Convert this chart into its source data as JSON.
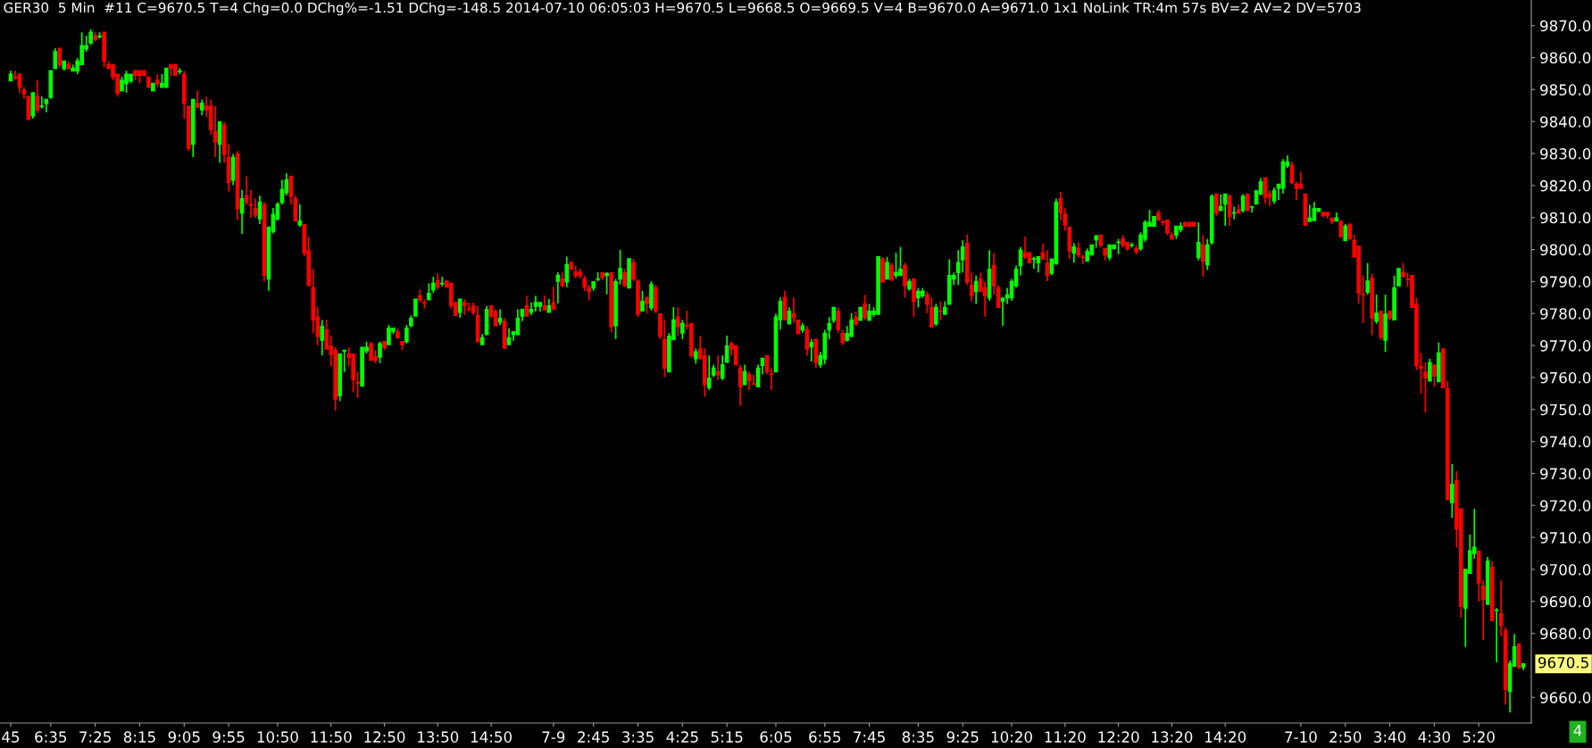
{
  "chart_data": {
    "type": "candlestick",
    "title": "GER30  5 Min  #11 C=9670.5 T=4 Chg=0.0 DChg%=-1.51 DChg=-148.5 2014-07-10 06:05:03 H=9670.5 L=9668.5 O=9669.5 V=4 B=9670.0 A=9671.0 1x1 NoLink TR:4m 57s BV=2 AV=2 DV=5703",
    "categories": [
      "45",
      null,
      null,
      null,
      null,
      null,
      null,
      null,
      null,
      "6:35",
      null,
      null,
      null,
      null,
      null,
      null,
      null,
      null,
      null,
      "7:25",
      null,
      null,
      null,
      null,
      null,
      null,
      null,
      null,
      null,
      "8:15",
      null,
      null,
      null,
      null,
      null,
      null,
      null,
      null,
      null,
      "9:05",
      null,
      null,
      null,
      null,
      null,
      null,
      null,
      null,
      null,
      "9:55",
      null,
      null,
      null,
      null,
      null,
      null,
      null,
      null,
      null,
      null,
      "10:50",
      null,
      null,
      null,
      null,
      null,
      null,
      null,
      null,
      null,
      null,
      null,
      "11:50",
      null,
      null,
      null,
      null,
      null,
      null,
      null,
      null,
      null,
      null,
      null,
      "12:50",
      null,
      null,
      null,
      null,
      null,
      null,
      null,
      null,
      null,
      null,
      null,
      "13:50",
      null,
      null,
      null,
      null,
      null,
      null,
      null,
      null,
      null,
      null,
      null,
      "14:50",
      null,
      null,
      null,
      null,
      null,
      null,
      null,
      null,
      null,
      null,
      null,
      null,
      null,
      "7-9",
      null,
      null,
      null,
      null,
      null,
      null,
      null,
      null,
      "2:45",
      null,
      null,
      null,
      null,
      null,
      null,
      null,
      null,
      null,
      "3:35",
      null,
      null,
      null,
      null,
      null,
      null,
      null,
      null,
      null,
      "4:25",
      null,
      null,
      null,
      null,
      null,
      null,
      null,
      null,
      null,
      "5:15",
      null,
      null,
      null,
      null,
      null,
      null,
      null,
      null,
      null,
      null,
      "6:05",
      null,
      null,
      null,
      null,
      null,
      null,
      null,
      null,
      null,
      null,
      "6:55",
      null,
      null,
      null,
      null,
      null,
      null,
      null,
      null,
      null,
      "7:45",
      null,
      null,
      null,
      null,
      null,
      null,
      null,
      null,
      null,
      null,
      "8:35",
      null,
      null,
      null,
      null,
      null,
      null,
      null,
      null,
      null,
      "9:25",
      null,
      null,
      null,
      null,
      null,
      null,
      null,
      null,
      null,
      null,
      "10:20",
      null,
      null,
      null,
      null,
      null,
      null,
      null,
      null,
      null,
      null,
      null,
      "11:20",
      null,
      null,
      null,
      null,
      null,
      null,
      null,
      null,
      null,
      null,
      null,
      "12:20",
      null,
      null,
      null,
      null,
      null,
      null,
      null,
      null,
      null,
      null,
      null,
      "13:20",
      null,
      null,
      null,
      null,
      null,
      null,
      null,
      null,
      null,
      null,
      null,
      "14:20",
      null,
      null,
      null,
      null,
      null,
      null,
      null,
      null,
      null,
      null,
      null,
      null,
      null,
      null,
      null,
      null,
      "7-10",
      null,
      null,
      null,
      null,
      null,
      null,
      null,
      null,
      null,
      "2:50",
      null,
      null,
      null,
      null,
      null,
      null,
      null,
      null,
      null,
      "3:40",
      null,
      null,
      null,
      null,
      null,
      null,
      null,
      null,
      null,
      "4:30",
      null,
      null,
      null,
      null,
      null,
      null,
      null,
      null,
      null,
      "5:20",
      null,
      null,
      null,
      null,
      null,
      null,
      null,
      null,
      null,
      null
    ],
    "ohlc": [
      [
        9852.7,
        9855.9,
        9852.7,
        9854.8
      ],
      [
        9853.9,
        9855.9,
        9853.0,
        9853.7
      ],
      [
        9854.8,
        9854.8,
        9849.0,
        9850.7
      ],
      [
        9849.8,
        9850.8,
        9847.1,
        9848.7
      ],
      [
        9847.8,
        9847.8,
        9840.7,
        9840.7
      ],
      [
        9841.8,
        9849.0,
        9840.9,
        9849.0
      ],
      [
        9847.8,
        9852.9,
        9842.7,
        9843.7
      ],
      [
        9844.7,
        9847.8,
        9844.0,
        9844.8
      ],
      [
        9845.7,
        9846.9,
        9842.9,
        9846.9
      ],
      [
        9847.6,
        9855.9,
        9847.1,
        9855.9
      ],
      [
        9856.6,
        9862.9,
        9856.6,
        9861.8
      ],
      [
        9862.9,
        9862.9,
        9856.9,
        9857.8
      ],
      [
        9856.6,
        9858.9,
        9855.9,
        9858.9
      ],
      [
        9857.8,
        9858.9,
        9856.6,
        9856.6
      ],
      [
        9855.8,
        9857.8,
        9855.8,
        9856.7
      ],
      [
        9855.8,
        9859.9,
        9854.8,
        9858.9
      ],
      [
        9857.8,
        9867.9,
        9857.8,
        9863.7
      ],
      [
        9862.7,
        9866.8,
        9861.8,
        9863.7
      ],
      [
        9864.6,
        9868.8,
        9863.9,
        9867.9
      ],
      [
        9866.8,
        9867.9,
        9865.0,
        9865.7
      ],
      [
        9866.5,
        9867.9,
        9866.0,
        9866.7
      ],
      [
        9867.9,
        9867.9,
        9856.9,
        9858.9
      ],
      [
        9857.8,
        9858.9,
        9856.6,
        9856.6
      ],
      [
        9857.8,
        9857.8,
        9852.9,
        9853.9
      ],
      [
        9854.8,
        9854.8,
        9847.8,
        9848.8
      ],
      [
        9849.6,
        9854.1,
        9849.6,
        9852.9
      ],
      [
        9851.8,
        9855.9,
        9849.0,
        9854.8
      ],
      [
        9852.7,
        9854.8,
        9852.0,
        9854.8
      ],
      [
        9855.9,
        9855.9,
        9852.9,
        9854.5
      ],
      [
        9855.9,
        9855.9,
        9852.0,
        9854.5
      ],
      [
        9855.9,
        9855.9,
        9854.1,
        9854.5
      ],
      [
        9853.9,
        9853.9,
        9850.7,
        9850.7
      ],
      [
        9849.6,
        9851.9,
        9849.6,
        9851.9
      ],
      [
        9852.9,
        9854.8,
        9850.7,
        9851.8
      ],
      [
        9850.7,
        9854.8,
        9850.7,
        9851.9
      ],
      [
        9850.7,
        9856.7,
        9850.7,
        9856.7
      ],
      [
        9857.8,
        9857.8,
        9854.1,
        9856.7
      ],
      [
        9857.8,
        9857.8,
        9854.5,
        9854.5
      ],
      [
        9855.6,
        9856.7,
        9854.8,
        9855.8
      ],
      [
        9854.8,
        9855.9,
        9840.9,
        9845.7
      ],
      [
        9844.8,
        9844.8,
        9830.8,
        9831.7
      ],
      [
        9832.9,
        9846.9,
        9828.9,
        9846.9
      ],
      [
        9845.7,
        9849.7,
        9844.0,
        9844.6
      ],
      [
        9843.7,
        9846.9,
        9842.0,
        9845.7
      ],
      [
        9844.8,
        9847.8,
        9841.5,
        9843.7
      ],
      [
        9844.8,
        9846.9,
        9835.9,
        9837.5
      ],
      [
        9836.9,
        9844.8,
        9828.9,
        9833.6
      ],
      [
        9832.9,
        9839.9,
        9827.1,
        9839.9
      ],
      [
        9838.9,
        9839.9,
        9827.1,
        9829.7
      ],
      [
        9828.8,
        9832.9,
        9818.1,
        9820.9
      ],
      [
        9821.7,
        9829.9,
        9820.1,
        9828.8
      ],
      [
        9829.9,
        9830.8,
        9809.2,
        9812.7
      ],
      [
        9811.4,
        9818.7,
        9804.9,
        9815.9
      ],
      [
        9816.8,
        9822.9,
        9814.0,
        9814.8
      ],
      [
        9814.0,
        9818.7,
        9809.9,
        9813.8
      ],
      [
        9812.8,
        9815.9,
        9809.9,
        9810.8
      ],
      [
        9809.6,
        9816.8,
        9808.0,
        9814.8
      ],
      [
        9814.0,
        9814.8,
        9790.0,
        9791.9
      ],
      [
        9790.8,
        9807.0,
        9787.1,
        9807.0
      ],
      [
        9805.7,
        9813.0,
        9805.0,
        9811.0
      ],
      [
        9809.6,
        9814.8,
        9809.1,
        9814.1
      ],
      [
        9814.7,
        9821.8,
        9814.1,
        9818.7
      ],
      [
        9817.8,
        9823.9,
        9816.9,
        9821.8
      ],
      [
        9822.9,
        9822.9,
        9814.1,
        9816.7
      ],
      [
        9815.9,
        9816.9,
        9808.9,
        9808.9
      ],
      [
        9807.7,
        9814.1,
        9807.1,
        9808.9
      ],
      [
        9807.8,
        9807.8,
        9798.0,
        9798.9
      ],
      [
        9799.6,
        9804.0,
        9788.8,
        9788.8
      ],
      [
        9788.0,
        9793.9,
        9773.9,
        9778.0
      ],
      [
        9778.8,
        9782.0,
        9770.0,
        9772.9
      ],
      [
        9771.7,
        9778.0,
        9766.9,
        9776.0
      ],
      [
        9774.9,
        9778.0,
        9768.9,
        9768.9
      ],
      [
        9769.8,
        9773.1,
        9763.5,
        9767.2
      ],
      [
        9768.5,
        9769.4,
        9749.6,
        9753.3
      ],
      [
        9754.3,
        9767.3,
        9752.6,
        9767.3
      ],
      [
        9768.3,
        9768.5,
        9761.7,
        9768.5
      ],
      [
        9767.3,
        9769.4,
        9763.5,
        9766.3
      ],
      [
        9767.3,
        9767.3,
        9755.4,
        9759.4
      ],
      [
        9758.5,
        9761.7,
        9753.6,
        9758.3
      ],
      [
        9757.3,
        9769.4,
        9757.3,
        9769.4
      ],
      [
        9768.3,
        9771.2,
        9767.5,
        9769.4
      ],
      [
        9770.5,
        9771.2,
        9765.4,
        9765.4
      ],
      [
        9766.4,
        9768.5,
        9764.5,
        9765.4
      ],
      [
        9766.4,
        9771.2,
        9764.5,
        9770.5
      ],
      [
        9771.2,
        9771.2,
        9768.6,
        9769.4
      ],
      [
        9770.3,
        9776.4,
        9770.3,
        9775.4
      ],
      [
        9774.5,
        9775.4,
        9773.6,
        9775.4
      ],
      [
        9774.3,
        9775.4,
        9772.4,
        9772.4
      ],
      [
        9771.2,
        9771.2,
        9768.6,
        9770.3
      ],
      [
        9771.2,
        9776.4,
        9770.6,
        9775.4
      ],
      [
        9776.2,
        9779.4,
        9775.7,
        9778.5
      ],
      [
        9779.2,
        9784.5,
        9779.2,
        9784.5
      ],
      [
        9785.5,
        9787.5,
        9783.4,
        9784.3
      ],
      [
        9783.4,
        9784.5,
        9781.5,
        9783.3
      ],
      [
        9784.3,
        9789.4,
        9784.3,
        9786.3
      ],
      [
        9787.4,
        9791.5,
        9786.4,
        9789.4
      ],
      [
        9790.3,
        9792.5,
        9787.5,
        9788.3
      ],
      [
        9789.3,
        9791.5,
        9788.5,
        9789.4
      ],
      [
        9790.1,
        9790.1,
        9788.3,
        9788.3
      ],
      [
        9789.4,
        9789.4,
        9781.5,
        9782.4
      ],
      [
        9783.4,
        9783.4,
        9779.4,
        9779.4
      ],
      [
        9780.4,
        9784.5,
        9778.7,
        9784.5
      ],
      [
        9783.4,
        9784.5,
        9779.6,
        9782.4
      ],
      [
        9781.4,
        9783.4,
        9780.6,
        9781.3
      ],
      [
        9782.4,
        9783.4,
        9779.6,
        9780.4
      ],
      [
        9779.4,
        9782.4,
        9771.2,
        9771.2
      ],
      [
        9770.3,
        9773.6,
        9770.3,
        9772.4
      ],
      [
        9773.4,
        9782.4,
        9773.4,
        9781.3
      ],
      [
        9782.4,
        9782.4,
        9778.5,
        9779.2
      ],
      [
        9780.6,
        9781.3,
        9776.2,
        9776.2
      ],
      [
        9777.3,
        9781.3,
        9776.4,
        9778.5
      ],
      [
        9777.5,
        9778.5,
        9769.2,
        9769.2
      ],
      [
        9770.3,
        9775.4,
        9770.3,
        9772.4
      ],
      [
        9773.4,
        9774.3,
        9771.5,
        9774.3
      ],
      [
        9773.4,
        9781.3,
        9773.4,
        9778.5
      ],
      [
        9779.2,
        9781.3,
        9777.6,
        9781.3
      ],
      [
        9782.4,
        9785.5,
        9779.2,
        9779.2
      ],
      [
        9780.4,
        9783.4,
        9779.5,
        9781.3
      ],
      [
        9782.3,
        9785.6,
        9780.6,
        9783.4
      ],
      [
        9782.3,
        9783.4,
        9780.6,
        9783.4
      ],
      [
        9782.4,
        9785.6,
        9781.2,
        9781.2
      ],
      [
        9780.4,
        9784.5,
        9780.4,
        9782.4
      ],
      [
        9783.4,
        9788.3,
        9781.3,
        9781.3
      ],
      [
        9790.1,
        9792.9,
        9783.1,
        9791.9
      ],
      [
        9790.8,
        9792.9,
        9788.2,
        9788.7
      ],
      [
        9789.9,
        9797.8,
        9788.2,
        9795.3
      ],
      [
        9795.9,
        9796.4,
        9793.8,
        9793.8
      ],
      [
        9792.9,
        9795.0,
        9791.0,
        9791.9
      ],
      [
        9792.9,
        9794.0,
        9791.0,
        9791.9
      ],
      [
        9790.8,
        9791.9,
        9787.1,
        9788.2
      ],
      [
        9788.0,
        9789.0,
        9784.1,
        9786.9
      ],
      [
        9788.0,
        9789.9,
        9787.1,
        9789.9
      ],
      [
        9790.7,
        9792.9,
        9790.1,
        9790.8
      ],
      [
        9792.7,
        9792.7,
        9790.4,
        9791.3
      ],
      [
        9791.9,
        9792.9,
        9786.0,
        9792.5
      ],
      [
        9792.7,
        9792.7,
        9774.1,
        9775.9
      ],
      [
        9776.2,
        9790.8,
        9772.0,
        9789.9
      ],
      [
        9790.8,
        9799.9,
        9789.1,
        9794.0
      ],
      [
        9792.7,
        9794.0,
        9788.2,
        9788.8
      ],
      [
        9788.0,
        9797.1,
        9788.0,
        9797.1
      ],
      [
        9795.9,
        9797.1,
        9790.1,
        9790.8
      ],
      [
        9790.1,
        9790.8,
        9778.9,
        9779.8
      ],
      [
        9780.8,
        9787.1,
        9780.8,
        9783.8
      ],
      [
        9785.0,
        9785.0,
        9780.1,
        9783.1
      ],
      [
        9781.8,
        9790.1,
        9780.9,
        9789.0
      ],
      [
        9788.0,
        9789.0,
        9780.1,
        9780.8
      ],
      [
        9779.9,
        9779.9,
        9772.0,
        9772.9
      ],
      [
        9771.9,
        9778.0,
        9760.1,
        9762.9
      ],
      [
        9761.8,
        9773.9,
        9761.8,
        9772.9
      ],
      [
        9771.9,
        9782.0,
        9771.9,
        9778.0
      ],
      [
        9778.9,
        9782.0,
        9773.1,
        9775.9
      ],
      [
        9773.9,
        9778.0,
        9772.0,
        9776.9
      ],
      [
        9776.2,
        9780.9,
        9775.0,
        9776.1
      ],
      [
        9776.9,
        9776.9,
        9766.2,
        9766.8
      ],
      [
        9765.9,
        9769.1,
        9764.3,
        9768.0
      ],
      [
        9768.9,
        9773.1,
        9765.9,
        9765.9
      ],
      [
        9766.8,
        9769.1,
        9754.0,
        9757.8
      ],
      [
        9756.9,
        9766.9,
        9756.1,
        9759.8
      ],
      [
        9760.8,
        9764.0,
        9760.1,
        9762.9
      ],
      [
        9761.8,
        9766.9,
        9759.2,
        9760.9
      ],
      [
        9759.8,
        9766.9,
        9759.2,
        9764.0
      ],
      [
        9764.8,
        9773.1,
        9764.8,
        9769.9
      ],
      [
        9770.5,
        9771.3,
        9766.9,
        9768.9
      ],
      [
        9769.9,
        9769.9,
        9764.0,
        9764.0
      ],
      [
        9762.9,
        9764.0,
        9751.1,
        9757.1
      ],
      [
        9757.8,
        9764.0,
        9757.8,
        9761.8
      ],
      [
        9760.9,
        9761.8,
        9756.1,
        9759.0
      ],
      [
        9758.0,
        9760.9,
        9757.9,
        9757.9
      ],
      [
        9757.1,
        9764.0,
        9757.1,
        9762.9
      ],
      [
        9763.8,
        9766.0,
        9761.0,
        9766.0
      ],
      [
        9766.8,
        9766.8,
        9761.0,
        9761.8
      ],
      [
        9761.1,
        9762.9,
        9756.1,
        9761.0
      ],
      [
        9761.8,
        9779.9,
        9761.8,
        9778.9
      ],
      [
        9778.0,
        9785.0,
        9775.0,
        9783.8
      ],
      [
        9785.0,
        9787.1,
        9778.0,
        9778.0
      ],
      [
        9776.8,
        9781.9,
        9776.8,
        9780.7
      ],
      [
        9779.9,
        9785.0,
        9777.0,
        9778.7
      ],
      [
        9777.9,
        9777.9,
        9773.7,
        9773.7
      ],
      [
        9774.8,
        9777.0,
        9774.0,
        9776.1
      ],
      [
        9774.9,
        9776.1,
        9766.8,
        9768.9
      ],
      [
        9769.6,
        9772.0,
        9765.0,
        9770.9
      ],
      [
        9771.9,
        9771.9,
        9763.0,
        9764.7
      ],
      [
        9764.0,
        9768.0,
        9763.0,
        9766.8
      ],
      [
        9765.8,
        9774.9,
        9764.2,
        9773.8
      ],
      [
        9774.9,
        9778.9,
        9772.0,
        9776.8
      ],
      [
        9777.9,
        9781.9,
        9777.0,
        9781.9
      ],
      [
        9780.7,
        9781.9,
        9774.0,
        9775.0
      ],
      [
        9773.7,
        9774.9,
        9770.1,
        9771.0
      ],
      [
        9771.7,
        9776.1,
        9771.2,
        9773.7
      ],
      [
        9772.9,
        9780.1,
        9772.9,
        9777.9
      ],
      [
        9778.8,
        9780.7,
        9776.1,
        9776.8
      ],
      [
        9777.9,
        9781.9,
        9777.9,
        9781.9
      ],
      [
        9783.0,
        9785.8,
        9777.9,
        9778.7
      ],
      [
        9777.9,
        9783.0,
        9777.9,
        9780.7
      ],
      [
        9779.8,
        9781.9,
        9778.9,
        9780.7
      ],
      [
        9779.8,
        9797.7,
        9779.8,
        9797.7
      ],
      [
        9797.0,
        9797.7,
        9789.8,
        9789.8
      ],
      [
        9790.8,
        9797.7,
        9790.8,
        9795.9
      ],
      [
        9795.0,
        9795.9,
        9790.1,
        9790.6
      ],
      [
        9791.9,
        9799.0,
        9791.0,
        9792.8
      ],
      [
        9791.9,
        9800.8,
        9791.9,
        9793.8
      ],
      [
        9795.0,
        9795.9,
        9785.0,
        9788.7
      ],
      [
        9787.8,
        9790.8,
        9787.1,
        9790.0
      ],
      [
        9790.8,
        9790.8,
        9779.0,
        9783.8
      ],
      [
        9784.9,
        9788.0,
        9781.9,
        9786.9
      ],
      [
        9785.6,
        9788.0,
        9784.9,
        9786.9
      ],
      [
        9785.8,
        9786.9,
        9780.1,
        9782.9
      ],
      [
        9781.9,
        9785.0,
        9775.9,
        9775.9
      ],
      [
        9776.8,
        9783.0,
        9776.1,
        9781.9
      ],
      [
        9780.8,
        9783.8,
        9777.9,
        9780.7
      ],
      [
        9779.8,
        9783.8,
        9779.8,
        9781.9
      ],
      [
        9782.9,
        9797.0,
        9782.9,
        9791.9
      ],
      [
        9790.8,
        9792.8,
        9788.9,
        9791.9
      ],
      [
        9792.8,
        9799.8,
        9788.9,
        9795.9
      ],
      [
        9796.8,
        9802.9,
        9792.8,
        9800.8
      ],
      [
        9801.9,
        9804.7,
        9788.9,
        9789.8
      ],
      [
        9788.9,
        9792.8,
        9783.8,
        9785.6
      ],
      [
        9786.9,
        9791.9,
        9783.0,
        9790.0
      ],
      [
        9790.8,
        9792.8,
        9786.9,
        9786.9
      ],
      [
        9788.0,
        9790.0,
        9779.0,
        9785.6
      ],
      [
        9784.9,
        9799.8,
        9784.0,
        9793.8
      ],
      [
        9795.0,
        9799.0,
        9785.8,
        9788.7
      ],
      [
        9788.0,
        9788.9,
        9781.9,
        9781.9
      ],
      [
        9783.8,
        9784.8,
        9776.1,
        9784.8
      ],
      [
        9784.9,
        9788.0,
        9783.0,
        9785.8
      ],
      [
        9784.9,
        9790.8,
        9784.0,
        9790.0
      ],
      [
        9788.7,
        9795.0,
        9788.0,
        9793.8
      ],
      [
        9795.0,
        9800.8,
        9791.9,
        9799.8
      ],
      [
        9799.0,
        9804.0,
        9797.0,
        9797.7
      ],
      [
        9799.0,
        9799.0,
        9795.9,
        9795.9
      ],
      [
        9797.0,
        9797.7,
        9794.0,
        9797.1
      ],
      [
        9795.9,
        9797.7,
        9792.8,
        9797.7
      ],
      [
        9799.0,
        9801.9,
        9797.0,
        9797.0
      ],
      [
        9795.7,
        9799.8,
        9790.1,
        9791.9
      ],
      [
        9792.6,
        9797.0,
        9792.0,
        9797.0
      ],
      [
        9795.6,
        9815.9,
        9795.2,
        9814.8
      ],
      [
        9815.9,
        9818.0,
        9809.1,
        9811.6
      ],
      [
        9811.0,
        9812.9,
        9805.9,
        9807.7
      ],
      [
        9807.0,
        9807.0,
        9797.0,
        9799.6
      ],
      [
        9798.9,
        9802.0,
        9795.9,
        9800.8
      ],
      [
        9800.3,
        9802.2,
        9797.5,
        9798.3
      ],
      [
        9797.6,
        9798.4,
        9795.4,
        9797.5
      ],
      [
        9796.4,
        9800.3,
        9796.4,
        9799.4
      ],
      [
        9798.3,
        9801.4,
        9798.3,
        9801.4
      ],
      [
        9803.1,
        9804.3,
        9800.6,
        9804.3
      ],
      [
        9804.5,
        9804.5,
        9800.6,
        9801.4
      ],
      [
        9800.3,
        9800.3,
        9796.6,
        9798.3
      ],
      [
        9797.5,
        9801.4,
        9796.6,
        9801.4
      ],
      [
        9800.3,
        9801.4,
        9800.3,
        9801.4
      ],
      [
        9802.2,
        9803.3,
        9798.5,
        9802.3
      ],
      [
        9803.3,
        9804.5,
        9800.6,
        9801.4
      ],
      [
        9802.2,
        9802.2,
        9799.6,
        9800.3
      ],
      [
        9801.3,
        9802.2,
        9800.6,
        9801.4
      ],
      [
        9800.3,
        9801.4,
        9798.5,
        9799.4
      ],
      [
        9800.3,
        9805.4,
        9799.6,
        9804.5
      ],
      [
        9803.3,
        9809.2,
        9802.4,
        9808.5
      ],
      [
        9807.3,
        9812.4,
        9807.3,
        9808.5
      ],
      [
        9807.3,
        9810.3,
        9807.3,
        9810.3
      ],
      [
        9811.4,
        9812.4,
        9809.2,
        9809.2
      ],
      [
        9808.6,
        9809.2,
        9807.4,
        9808.5
      ],
      [
        9809.2,
        9809.2,
        9804.5,
        9805.2
      ],
      [
        9804.5,
        9805.4,
        9803.3,
        9803.3
      ],
      [
        9804.5,
        9807.3,
        9803.3,
        9807.3
      ],
      [
        9806.3,
        9808.5,
        9805.4,
        9807.3
      ],
      [
        9808.5,
        9808.5,
        9807.3,
        9807.3
      ],
      [
        9808.5,
        9808.5,
        9807.3,
        9807.3
      ],
      [
        9808.5,
        9808.5,
        9807.3,
        9807.3
      ],
      [
        9797.5,
        9808.5,
        9796.6,
        9802.2
      ],
      [
        9801.4,
        9804.5,
        9791.5,
        9796.4
      ],
      [
        9795.2,
        9803.3,
        9793.6,
        9801.4
      ],
      [
        9802.2,
        9817.3,
        9801.5,
        9816.6
      ],
      [
        9817.3,
        9817.3,
        9810.5,
        9811.4
      ],
      [
        9812.2,
        9817.3,
        9812.2,
        9813.4
      ],
      [
        9814.2,
        9817.3,
        9807.4,
        9817.3
      ],
      [
        9816.6,
        9817.3,
        9807.4,
        9810.3
      ],
      [
        9811.4,
        9813.4,
        9809.4,
        9811.5
      ],
      [
        9812.4,
        9814.2,
        9811.4,
        9811.4
      ],
      [
        9812.2,
        9817.3,
        9811.6,
        9816.6
      ],
      [
        9817.3,
        9817.3,
        9812.2,
        9812.2
      ],
      [
        9813.3,
        9813.4,
        9811.6,
        9813.4
      ],
      [
        9814.2,
        9818.4,
        9814.2,
        9818.4
      ],
      [
        9817.3,
        9822.4,
        9817.3,
        9821.2
      ],
      [
        9822.4,
        9822.4,
        9814.3,
        9816.4
      ],
      [
        9817.3,
        9818.4,
        9813.6,
        9816.4
      ],
      [
        9815.2,
        9819.4,
        9814.3,
        9818.4
      ],
      [
        9819.2,
        9820.4,
        9815.5,
        9820.4
      ],
      [
        9819.2,
        9828.3,
        9817.5,
        9827.4
      ],
      [
        9826.2,
        9829.4,
        9825.5,
        9827.4
      ],
      [
        9826.3,
        9827.4,
        9820.4,
        9821.0
      ],
      [
        9820.4,
        9821.2,
        9815.5,
        9819.2
      ],
      [
        9820.4,
        9824.3,
        9819.2,
        9819.2
      ],
      [
        9817.3,
        9817.3,
        9807.3,
        9807.6
      ],
      [
        9808.8,
        9814.0,
        9808.8,
        9809.9
      ],
      [
        9809.1,
        9814.9,
        9809.1,
        9812.8
      ],
      [
        9811.9,
        9812.8,
        9811.9,
        9812.8
      ],
      [
        9811.6,
        9811.6,
        9810.0,
        9810.7
      ],
      [
        9811.6,
        9811.6,
        9809.7,
        9810.7
      ],
      [
        9809.8,
        9809.8,
        9808.0,
        9808.8
      ],
      [
        9808.9,
        9811.6,
        9808.9,
        9809.9
      ],
      [
        9808.8,
        9808.8,
        9804.0,
        9804.0
      ],
      [
        9802.8,
        9808.0,
        9802.8,
        9807.3
      ],
      [
        9807.9,
        9807.9,
        9803.0,
        9803.4
      ],
      [
        9802.8,
        9804.6,
        9797.7,
        9797.7
      ],
      [
        9801.0,
        9801.0,
        9783.1,
        9786.5
      ],
      [
        9786.0,
        9791.9,
        9777.0,
        9785.9
      ],
      [
        9786.7,
        9795.8,
        9785.9,
        9790.1
      ],
      [
        9791.0,
        9792.5,
        9773.2,
        9778.6
      ],
      [
        9777.6,
        9785.9,
        9776.8,
        9780.1
      ],
      [
        9780.7,
        9780.7,
        9771.7,
        9772.6
      ],
      [
        9771.7,
        9785.9,
        9768.0,
        9779.8
      ],
      [
        9780.7,
        9780.7,
        9777.8,
        9778.6
      ],
      [
        9778.0,
        9791.9,
        9778.0,
        9788.0
      ],
      [
        9788.6,
        9794.0,
        9788.6,
        9794.0
      ],
      [
        9792.8,
        9795.8,
        9791.5,
        9791.5
      ],
      [
        9790.8,
        9792.8,
        9788.3,
        9790.7
      ],
      [
        9791.9,
        9791.9,
        9781.9,
        9781.9
      ],
      [
        9782.8,
        9784.9,
        9762.3,
        9763.7
      ],
      [
        9763.5,
        9767.7,
        9755.0,
        9762.9
      ],
      [
        9761.7,
        9764.7,
        9749.0,
        9759.9
      ],
      [
        9758.9,
        9765.9,
        9758.9,
        9764.7
      ],
      [
        9763.9,
        9763.9,
        9757.2,
        9760.5
      ],
      [
        9758.7,
        9771.0,
        9758.7,
        9767.7
      ],
      [
        9768.9,
        9768.9,
        9756.8,
        9756.8
      ],
      [
        9756.5,
        9758.9,
        9721.8,
        9721.8
      ],
      [
        9720.9,
        9733.0,
        9716.1,
        9726.6
      ],
      [
        9727.8,
        9730.8,
        9706.9,
        9712.7
      ],
      [
        9718.9,
        9718.9,
        9684.9,
        9688.5
      ],
      [
        9687.9,
        9700.0,
        9675.8,
        9700.0
      ],
      [
        9698.8,
        9710.9,
        9698.8,
        9705.8
      ],
      [
        9704.9,
        9718.9,
        9703.3,
        9706.9
      ],
      [
        9705.8,
        9705.8,
        9690.0,
        9695.8
      ],
      [
        9694.8,
        9696.6,
        9677.9,
        9690.6
      ],
      [
        9689.1,
        9703.9,
        9689.1,
        9702.6
      ],
      [
        9700.6,
        9702.6,
        9684.1,
        9684.1
      ],
      [
        9687.2,
        9687.9,
        9671.0,
        9687.3
      ],
      [
        9686.1,
        9696.6,
        9679.1,
        9682.5
      ],
      [
        9680.9,
        9681.9,
        9657.7,
        9662.5
      ],
      [
        9661.9,
        9671.6,
        9655.3,
        9670.6
      ],
      [
        9669.8,
        9679.8,
        9669.8,
        9675.8
      ],
      [
        9676.7,
        9676.7,
        9668.8,
        9669.4
      ],
      [
        9669.5,
        9670.5,
        9668.5,
        9670.5
      ]
    ],
    "ylim": [
      9652,
      9878
    ],
    "yticks": [
      {
        "value": 9660,
        "label": "9660.0"
      },
      {
        "value": 9680,
        "label": "9680.0"
      },
      {
        "value": 9690,
        "label": "9690.0"
      },
      {
        "value": 9700,
        "label": "9700.0"
      },
      {
        "value": 9710,
        "label": "9710.0"
      },
      {
        "value": 9720,
        "label": "9720.0"
      },
      {
        "value": 9730,
        "label": "9730.0"
      },
      {
        "value": 9740,
        "label": "9740.0"
      },
      {
        "value": 9750,
        "label": "9750.0"
      },
      {
        "value": 9760,
        "label": "9760.0"
      },
      {
        "value": 9770,
        "label": "9770.0"
      },
      {
        "value": 9780,
        "label": "9780.0"
      },
      {
        "value": 9790,
        "label": "9790.0"
      },
      {
        "value": 9800,
        "label": "9800.0"
      },
      {
        "value": 9810,
        "label": "9810.0"
      },
      {
        "value": 9820,
        "label": "9820.0"
      },
      {
        "value": 9830,
        "label": "9830.0"
      },
      {
        "value": 9840,
        "label": "9840.0"
      },
      {
        "value": 9850,
        "label": "9850.0"
      },
      {
        "value": 9860,
        "label": "9860.0"
      },
      {
        "value": 9870,
        "label": "9870.0"
      }
    ],
    "annotations": [
      "9670.5",
      "4"
    ]
  }
}
